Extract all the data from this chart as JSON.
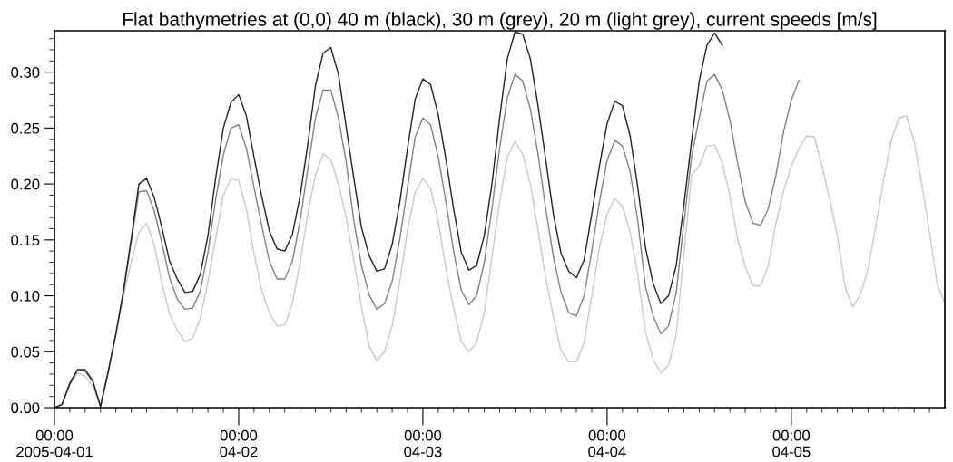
{
  "chart_data": {
    "type": "line",
    "title": "Flat bathymetries at (0,0) 40 m (black), 30 m (grey), 20 m (light grey), current speeds [m/s]",
    "x": [
      "2005-04-01T00:00",
      "2005-04-01T01:00",
      "2005-04-01T02:00",
      "2005-04-01T03:00",
      "2005-04-01T04:00",
      "2005-04-01T05:00",
      "2005-04-01T06:00",
      "2005-04-01T07:00",
      "2005-04-01T08:00",
      "2005-04-01T09:00",
      "2005-04-01T10:00",
      "2005-04-01T11:00",
      "2005-04-01T12:00",
      "2005-04-01T13:00",
      "2005-04-01T14:00",
      "2005-04-01T15:00",
      "2005-04-01T16:00",
      "2005-04-01T17:00",
      "2005-04-01T18:00",
      "2005-04-01T19:00",
      "2005-04-01T20:00",
      "2005-04-01T21:00",
      "2005-04-01T22:00",
      "2005-04-01T23:00",
      "2005-04-02T00:00",
      "2005-04-02T01:00",
      "2005-04-02T02:00",
      "2005-04-02T03:00",
      "2005-04-02T04:00",
      "2005-04-02T05:00",
      "2005-04-02T06:00",
      "2005-04-02T07:00",
      "2005-04-02T08:00",
      "2005-04-02T09:00",
      "2005-04-02T10:00",
      "2005-04-02T11:00",
      "2005-04-02T12:00",
      "2005-04-02T13:00",
      "2005-04-02T14:00",
      "2005-04-02T15:00",
      "2005-04-02T16:00",
      "2005-04-02T17:00",
      "2005-04-02T18:00",
      "2005-04-02T19:00",
      "2005-04-02T20:00",
      "2005-04-02T21:00",
      "2005-04-02T22:00",
      "2005-04-02T23:00",
      "2005-04-03T00:00",
      "2005-04-03T01:00",
      "2005-04-03T02:00",
      "2005-04-03T03:00",
      "2005-04-03T04:00",
      "2005-04-03T05:00",
      "2005-04-03T06:00",
      "2005-04-03T07:00",
      "2005-04-03T08:00",
      "2005-04-03T09:00",
      "2005-04-03T10:00",
      "2005-04-03T11:00",
      "2005-04-03T12:00",
      "2005-04-03T13:00",
      "2005-04-03T14:00",
      "2005-04-03T15:00",
      "2005-04-03T16:00",
      "2005-04-03T17:00",
      "2005-04-03T18:00",
      "2005-04-03T19:00",
      "2005-04-03T20:00",
      "2005-04-03T21:00",
      "2005-04-03T22:00",
      "2005-04-03T23:00",
      "2005-04-04T00:00",
      "2005-04-04T01:00",
      "2005-04-04T02:00",
      "2005-04-04T03:00",
      "2005-04-04T04:00",
      "2005-04-04T05:00",
      "2005-04-04T06:00",
      "2005-04-04T07:00",
      "2005-04-04T08:00",
      "2005-04-04T09:00",
      "2005-04-04T10:00",
      "2005-04-04T11:00",
      "2005-04-04T12:00",
      "2005-04-04T13:00",
      "2005-04-04T14:00",
      "2005-04-04T15:00",
      "2005-04-04T16:00",
      "2005-04-04T17:00",
      "2005-04-04T18:00",
      "2005-04-04T19:00",
      "2005-04-04T20:00",
      "2005-04-04T21:00",
      "2005-04-04T22:00",
      "2005-04-04T23:00",
      "2005-04-05T00:00",
      "2005-04-05T01:00",
      "2005-04-05T02:00",
      "2005-04-05T03:00",
      "2005-04-05T04:00",
      "2005-04-05T05:00",
      "2005-04-05T06:00",
      "2005-04-05T07:00",
      "2005-04-05T08:00",
      "2005-04-05T09:00",
      "2005-04-05T10:00",
      "2005-04-05T11:00",
      "2005-04-05T12:00",
      "2005-04-05T13:00",
      "2005-04-05T14:00",
      "2005-04-05T15:00",
      "2005-04-05T16:00",
      "2005-04-05T17:00",
      "2005-04-05T18:00",
      "2005-04-05T19:00",
      "2005-04-05T20:00"
    ],
    "series": [
      {
        "color": "#c8c8c8",
        "values": [
          0,
          0.003,
          0.02,
          0.031,
          0.028,
          0.019,
          0.001,
          0.032,
          0.066,
          0.1,
          0.13,
          0.157,
          0.165,
          0.146,
          0.111,
          0.084,
          0.069,
          0.059,
          0.062,
          0.08,
          0.113,
          0.151,
          0.19,
          0.205,
          0.203,
          0.178,
          0.138,
          0.105,
          0.085,
          0.073,
          0.074,
          0.093,
          0.13,
          0.173,
          0.208,
          0.227,
          0.222,
          0.2,
          0.17,
          0.132,
          0.09,
          0.055,
          0.042,
          0.05,
          0.073,
          0.113,
          0.159,
          0.193,
          0.205,
          0.196,
          0.167,
          0.124,
          0.089,
          0.059,
          0.05,
          0.058,
          0.085,
          0.135,
          0.184,
          0.224,
          0.238,
          0.227,
          0.2,
          0.159,
          0.116,
          0.081,
          0.051,
          0.041,
          0.041,
          0.058,
          0.1,
          0.143,
          0.173,
          0.187,
          0.18,
          0.157,
          0.119,
          0.068,
          0.043,
          0.031,
          0.038,
          0.065,
          0.138,
          0.208,
          0.216,
          0.234,
          0.235,
          0.219,
          0.189,
          0.151,
          0.126,
          0.109,
          0.109,
          0.127,
          0.165,
          0.194,
          0.216,
          0.232,
          0.243,
          0.242,
          0.216,
          0.186,
          0.154,
          0.108,
          0.09,
          0.101,
          0.124,
          0.162,
          0.203,
          0.238,
          0.259,
          0.261,
          0.238,
          0.2,
          0.157,
          0.111,
          0.093
        ]
      },
      {
        "color": "#808080",
        "values": [
          0,
          0.003,
          0.021,
          0.033,
          0.033,
          0.023,
          0.001,
          0.032,
          0.066,
          0.103,
          0.148,
          0.193,
          0.194,
          0.176,
          0.147,
          0.116,
          0.097,
          0.088,
          0.089,
          0.104,
          0.139,
          0.186,
          0.226,
          0.25,
          0.253,
          0.232,
          0.197,
          0.163,
          0.131,
          0.115,
          0.115,
          0.131,
          0.167,
          0.213,
          0.259,
          0.284,
          0.284,
          0.259,
          0.22,
          0.167,
          0.127,
          0.101,
          0.088,
          0.093,
          0.113,
          0.151,
          0.197,
          0.242,
          0.259,
          0.253,
          0.224,
          0.184,
          0.14,
          0.105,
          0.092,
          0.1,
          0.13,
          0.178,
          0.232,
          0.277,
          0.298,
          0.292,
          0.267,
          0.227,
          0.178,
          0.135,
          0.103,
          0.085,
          0.082,
          0.1,
          0.14,
          0.184,
          0.221,
          0.239,
          0.234,
          0.211,
          0.167,
          0.108,
          0.082,
          0.066,
          0.073,
          0.103,
          0.165,
          0.224,
          0.259,
          0.292,
          0.298,
          0.284,
          0.257,
          0.219,
          0.184,
          0.165,
          0.163,
          0.178,
          0.208,
          0.247,
          0.275,
          0.293,
          null,
          null,
          null,
          null,
          null,
          null,
          null,
          null,
          null,
          null,
          null,
          null,
          null,
          null,
          null,
          null,
          null,
          null,
          null
        ]
      },
      {
        "color": "#202020",
        "values": [
          0,
          0.003,
          0.022,
          0.034,
          0.034,
          0.024,
          0.001,
          0.032,
          0.066,
          0.105,
          0.151,
          0.2,
          0.205,
          0.188,
          0.161,
          0.131,
          0.115,
          0.103,
          0.104,
          0.119,
          0.154,
          0.205,
          0.25,
          0.273,
          0.28,
          0.261,
          0.224,
          0.189,
          0.158,
          0.142,
          0.14,
          0.155,
          0.189,
          0.235,
          0.288,
          0.317,
          0.322,
          0.298,
          0.251,
          0.205,
          0.161,
          0.136,
          0.122,
          0.124,
          0.146,
          0.184,
          0.232,
          0.276,
          0.294,
          0.289,
          0.262,
          0.222,
          0.178,
          0.139,
          0.123,
          0.127,
          0.154,
          0.2,
          0.259,
          0.312,
          0.336,
          0.334,
          0.312,
          0.27,
          0.222,
          0.173,
          0.138,
          0.122,
          0.116,
          0.132,
          0.173,
          0.216,
          0.254,
          0.274,
          0.27,
          0.243,
          0.197,
          0.143,
          0.111,
          0.093,
          0.1,
          0.127,
          0.181,
          0.238,
          0.292,
          0.324,
          0.335,
          0.324,
          null,
          null,
          null,
          null,
          null,
          null,
          null,
          null,
          null,
          null,
          null,
          null,
          null,
          null,
          null,
          null,
          null,
          null,
          null,
          null,
          null,
          null,
          null,
          null,
          null,
          null,
          null,
          null,
          null
        ]
      }
    ],
    "xlim": [
      "2005-04-01T00:00",
      "2005-04-05T20:00"
    ],
    "xticks": [
      {
        "value": "2005-04-01T00:00",
        "label": "00:00\n2005-04-01"
      },
      {
        "value": "2005-04-02T00:00",
        "label": "00:00\n04-02"
      },
      {
        "value": "2005-04-03T00:00",
        "label": "00:00\n04-03"
      },
      {
        "value": "2005-04-04T00:00",
        "label": "00:00\n04-04"
      },
      {
        "value": "2005-04-05T00:00",
        "label": "00:00\n04-05"
      },
      {
        "value": "2005-04-01T02:00",
        "label": null
      },
      {
        "value": "2005-04-01T04:00",
        "label": null
      },
      {
        "value": "2005-04-01T06:00",
        "label": null
      },
      {
        "value": "2005-04-01T08:00",
        "label": null
      },
      {
        "value": "2005-04-01T10:00",
        "label": null
      },
      {
        "value": "2005-04-01T12:00",
        "label": null
      },
      {
        "value": "2005-04-01T14:00",
        "label": null
      },
      {
        "value": "2005-04-01T16:00",
        "label": null
      },
      {
        "value": "2005-04-01T18:00",
        "label": null
      },
      {
        "value": "2005-04-01T20:00",
        "label": null
      },
      {
        "value": "2005-04-01T22:00",
        "label": null
      },
      {
        "value": "2005-04-02T02:00",
        "label": null
      },
      {
        "value": "2005-04-02T04:00",
        "label": null
      },
      {
        "value": "2005-04-02T06:00",
        "label": null
      },
      {
        "value": "2005-04-02T08:00",
        "label": null
      },
      {
        "value": "2005-04-02T10:00",
        "label": null
      },
      {
        "value": "2005-04-02T12:00",
        "label": null
      },
      {
        "value": "2005-04-02T14:00",
        "label": null
      },
      {
        "value": "2005-04-02T16:00",
        "label": null
      },
      {
        "value": "2005-04-02T18:00",
        "label": null
      },
      {
        "value": "2005-04-02T20:00",
        "label": null
      },
      {
        "value": "2005-04-02T22:00",
        "label": null
      },
      {
        "value": "2005-04-03T02:00",
        "label": null
      },
      {
        "value": "2005-04-03T04:00",
        "label": null
      },
      {
        "value": "2005-04-03T06:00",
        "label": null
      },
      {
        "value": "2005-04-03T08:00",
        "label": null
      },
      {
        "value": "2005-04-03T10:00",
        "label": null
      },
      {
        "value": "2005-04-03T12:00",
        "label": null
      },
      {
        "value": "2005-04-03T14:00",
        "label": null
      },
      {
        "value": "2005-04-03T16:00",
        "label": null
      },
      {
        "value": "2005-04-03T18:00",
        "label": null
      },
      {
        "value": "2005-04-03T20:00",
        "label": null
      },
      {
        "value": "2005-04-03T22:00",
        "label": null
      },
      {
        "value": "2005-04-04T02:00",
        "label": null
      },
      {
        "value": "2005-04-04T04:00",
        "label": null
      },
      {
        "value": "2005-04-04T06:00",
        "label": null
      },
      {
        "value": "2005-04-04T08:00",
        "label": null
      },
      {
        "value": "2005-04-04T10:00",
        "label": null
      },
      {
        "value": "2005-04-04T12:00",
        "label": null
      },
      {
        "value": "2005-04-04T14:00",
        "label": null
      },
      {
        "value": "2005-04-04T16:00",
        "label": null
      },
      {
        "value": "2005-04-04T18:00",
        "label": null
      },
      {
        "value": "2005-04-04T20:00",
        "label": null
      },
      {
        "value": "2005-04-04T22:00",
        "label": null
      },
      {
        "value": "2005-04-05T02:00",
        "label": null
      },
      {
        "value": "2005-04-05T04:00",
        "label": null
      },
      {
        "value": "2005-04-05T06:00",
        "label": null
      },
      {
        "value": "2005-04-05T08:00",
        "label": null
      },
      {
        "value": "2005-04-05T10:00",
        "label": null
      },
      {
        "value": "2005-04-05T12:00",
        "label": null
      },
      {
        "value": "2005-04-05T14:00",
        "label": null
      },
      {
        "value": "2005-04-05T16:00",
        "label": null
      },
      {
        "value": "2005-04-05T18:00",
        "label": null
      }
    ],
    "ylim": [
      0,
      0.337
    ],
    "yticks": [
      {
        "value": 0,
        "label": "0.00"
      },
      {
        "value": 0.05,
        "label": "0.05"
      },
      {
        "value": 0.1,
        "label": "0.10"
      },
      {
        "value": 0.15,
        "label": "0.15"
      },
      {
        "value": 0.2,
        "label": "0.20"
      },
      {
        "value": 0.25,
        "label": "0.25"
      },
      {
        "value": 0.3,
        "label": "0.30"
      },
      {
        "value": 0.01,
        "label": null
      },
      {
        "value": 0.02,
        "label": null
      },
      {
        "value": 0.03,
        "label": null
      },
      {
        "value": 0.04,
        "label": null
      },
      {
        "value": 0.06,
        "label": null
      },
      {
        "value": 0.07,
        "label": null
      },
      {
        "value": 0.08,
        "label": null
      },
      {
        "value": 0.09,
        "label": null
      },
      {
        "value": 0.11,
        "label": null
      },
      {
        "value": 0.12,
        "label": null
      },
      {
        "value": 0.13,
        "label": null
      },
      {
        "value": 0.14,
        "label": null
      },
      {
        "value": 0.16,
        "label": null
      },
      {
        "value": 0.17,
        "label": null
      },
      {
        "value": 0.18,
        "label": null
      },
      {
        "value": 0.19,
        "label": null
      },
      {
        "value": 0.21,
        "label": null
      },
      {
        "value": 0.22,
        "label": null
      },
      {
        "value": 0.23,
        "label": null
      },
      {
        "value": 0.24,
        "label": null
      },
      {
        "value": 0.26,
        "label": null
      },
      {
        "value": 0.27,
        "label": null
      },
      {
        "value": 0.28,
        "label": null
      },
      {
        "value": 0.29,
        "label": null
      },
      {
        "value": 0.31,
        "label": null
      },
      {
        "value": 0.32,
        "label": null
      },
      {
        "value": 0.33,
        "label": null
      }
    ],
    "grid": false,
    "legend": false,
    "marker": "none",
    "line_style": "solid"
  }
}
